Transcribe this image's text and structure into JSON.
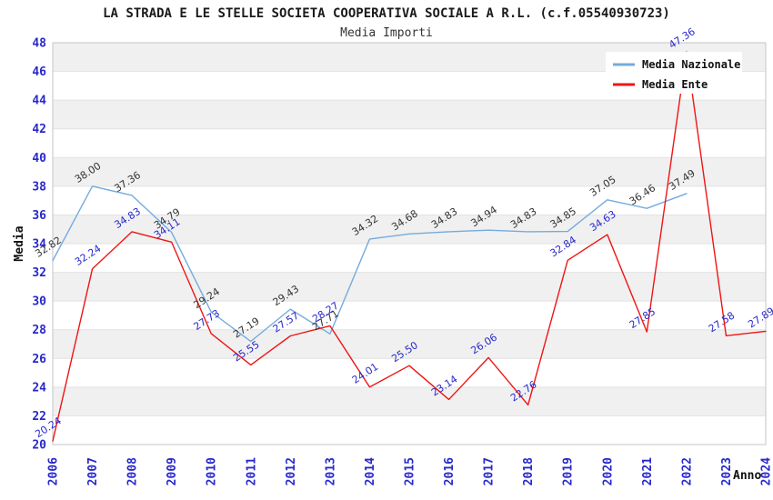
{
  "chart_data": {
    "type": "line",
    "title": "LA STRADA E LE STELLE SOCIETA COOPERATIVA SOCIALE A R.L. (c.f.05540930723)",
    "subtitle": "Media Importi",
    "xlabel": "Anno",
    "ylabel": "Media",
    "ylim": [
      20,
      48
    ],
    "ytick_step": 2,
    "grid": "alternating-horizontal-bands",
    "legend_position": "top-right",
    "colors": {
      "axis_tick_text": "#2828cc",
      "band_gray": "#f0f0f0",
      "gridline": "#e2e2e2",
      "plot_border": "#c6c6c6"
    },
    "categories": [
      "2006",
      "2007",
      "2008",
      "2009",
      "2010",
      "2011",
      "2012",
      "2013",
      "2014",
      "2015",
      "2016",
      "2017",
      "2018",
      "2019",
      "2020",
      "2021",
      "2022",
      "2023",
      "2024"
    ],
    "series": [
      {
        "name": "Media Nazionale",
        "color": "#74abdd",
        "label_color": "#333333",
        "values": [
          32.82,
          38.0,
          37.36,
          34.79,
          29.24,
          27.19,
          29.43,
          27.71,
          34.32,
          34.68,
          34.83,
          34.94,
          34.83,
          34.85,
          37.05,
          36.46,
          37.49
        ]
      },
      {
        "name": "Media Ente",
        "color": "#ee1515",
        "label_color": "#2828cc",
        "values": [
          20.24,
          32.24,
          34.83,
          34.11,
          27.73,
          25.55,
          27.57,
          28.27,
          24.01,
          25.5,
          23.14,
          26.06,
          22.76,
          32.84,
          34.63,
          27.85,
          47.36,
          27.58,
          27.89
        ]
      }
    ]
  }
}
